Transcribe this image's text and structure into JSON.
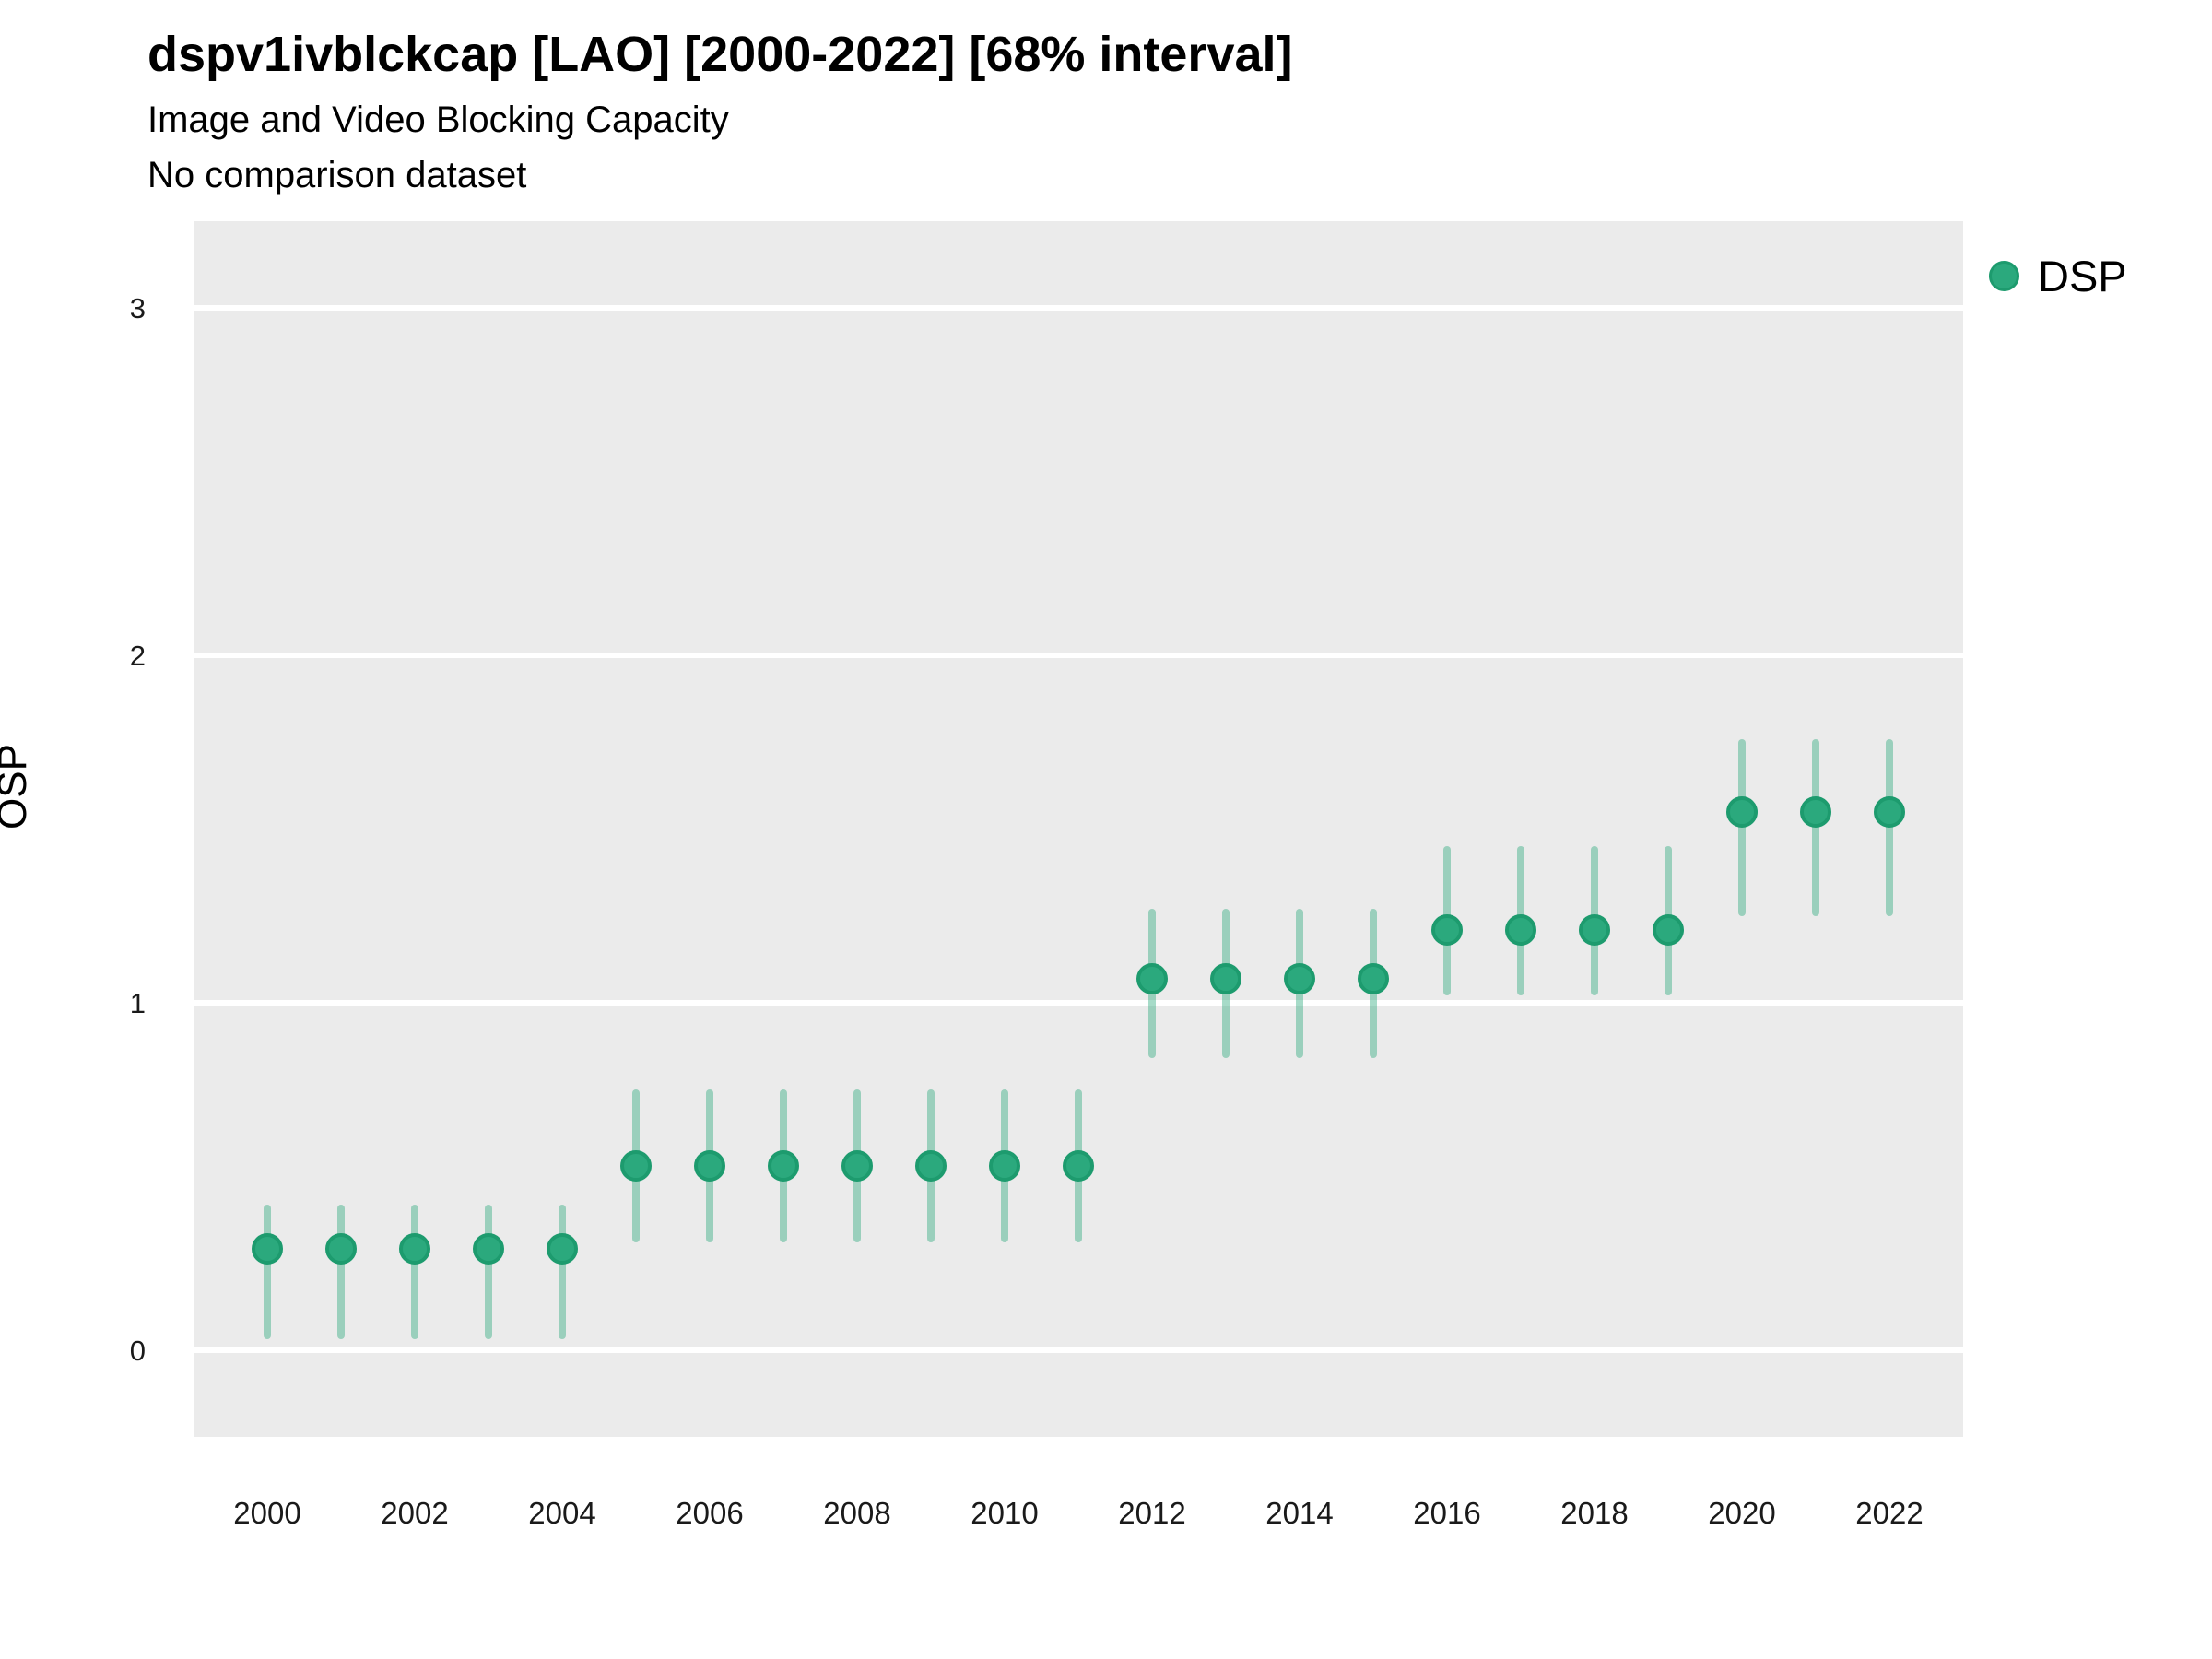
{
  "header": {
    "title": "dspv1ivblckcap [LAO] [2000-2022] [68% interval]",
    "subtitle": "Image and Video Blocking Capacity",
    "comparison_note": "No comparison dataset"
  },
  "legend": {
    "items": [
      {
        "label": "DSP",
        "color": "#2BA97D"
      }
    ]
  },
  "colors": {
    "panel_bg": "#EBEBEB",
    "gridline": "#FFFFFF",
    "point_fill": "#2BA97D",
    "point_border": "#1D9B6E",
    "interval_line": "rgba(43,169,125,0.42)",
    "axis_text": "#1a1a1a"
  },
  "chart_data": {
    "type": "pointrange",
    "title": "dspv1ivblckcap [LAO] [2000-2022] [68% interval]",
    "subtitle": "Image and Video Blocking Capacity",
    "annotation": "No comparison dataset",
    "interval_label": "68% interval",
    "country": "LAO",
    "xlabel": "",
    "ylabel": "OSP",
    "x_ticks": [
      2000,
      2002,
      2004,
      2006,
      2008,
      2010,
      2012,
      2014,
      2016,
      2018,
      2020,
      2022
    ],
    "y_ticks": [
      0,
      1,
      2,
      3
    ],
    "x_range": [
      1999,
      2023
    ],
    "y_range": [
      -0.25,
      3.25
    ],
    "grid": "major-horizontal-only",
    "legend_position": "right-top",
    "series": [
      {
        "name": "DSP",
        "points": [
          {
            "year": 2000,
            "est": 0.29,
            "lo": 0.03,
            "hi": 0.42
          },
          {
            "year": 2001,
            "est": 0.29,
            "lo": 0.03,
            "hi": 0.42
          },
          {
            "year": 2002,
            "est": 0.29,
            "lo": 0.03,
            "hi": 0.42
          },
          {
            "year": 2003,
            "est": 0.29,
            "lo": 0.03,
            "hi": 0.42
          },
          {
            "year": 2004,
            "est": 0.29,
            "lo": 0.03,
            "hi": 0.42
          },
          {
            "year": 2005,
            "est": 0.53,
            "lo": 0.31,
            "hi": 0.75
          },
          {
            "year": 2006,
            "est": 0.53,
            "lo": 0.31,
            "hi": 0.75
          },
          {
            "year": 2007,
            "est": 0.53,
            "lo": 0.31,
            "hi": 0.75
          },
          {
            "year": 2008,
            "est": 0.53,
            "lo": 0.31,
            "hi": 0.75
          },
          {
            "year": 2009,
            "est": 0.53,
            "lo": 0.31,
            "hi": 0.75
          },
          {
            "year": 2010,
            "est": 0.53,
            "lo": 0.31,
            "hi": 0.75
          },
          {
            "year": 2011,
            "est": 0.53,
            "lo": 0.31,
            "hi": 0.75
          },
          {
            "year": 2012,
            "est": 1.07,
            "lo": 0.84,
            "hi": 1.27
          },
          {
            "year": 2013,
            "est": 1.07,
            "lo": 0.84,
            "hi": 1.27
          },
          {
            "year": 2014,
            "est": 1.07,
            "lo": 0.84,
            "hi": 1.27
          },
          {
            "year": 2015,
            "est": 1.07,
            "lo": 0.84,
            "hi": 1.27
          },
          {
            "year": 2016,
            "est": 1.21,
            "lo": 1.02,
            "hi": 1.45
          },
          {
            "year": 2017,
            "est": 1.21,
            "lo": 1.02,
            "hi": 1.45
          },
          {
            "year": 2018,
            "est": 1.21,
            "lo": 1.02,
            "hi": 1.45
          },
          {
            "year": 2019,
            "est": 1.21,
            "lo": 1.02,
            "hi": 1.45
          },
          {
            "year": 2020,
            "est": 1.55,
            "lo": 1.25,
            "hi": 1.76
          },
          {
            "year": 2021,
            "est": 1.55,
            "lo": 1.25,
            "hi": 1.76
          },
          {
            "year": 2022,
            "est": 1.55,
            "lo": 1.25,
            "hi": 1.76
          }
        ]
      }
    ]
  }
}
